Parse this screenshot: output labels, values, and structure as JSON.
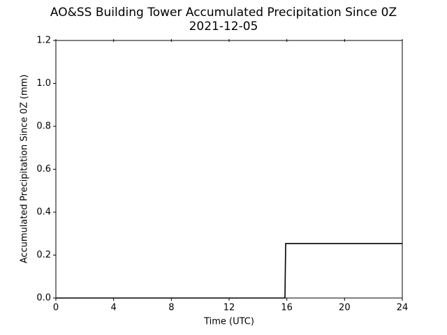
{
  "chart_data": {
    "type": "line",
    "title": "AO&SS Building Tower Accumulated Precipitation Since 0Z",
    "subtitle": "2021-12-05",
    "x_label": "Time (UTC)",
    "y_label": "Accumulated Precipitation Since 0Z (mm)",
    "x": [
      0,
      15.87,
      15.92,
      24
    ],
    "values": [
      0,
      0,
      0.254,
      0.254
    ],
    "color": "#000000",
    "xlim": [
      0,
      24
    ],
    "xticks": [
      0,
      4,
      8,
      12,
      16,
      20,
      24
    ],
    "ylim": [
      0,
      1.2
    ],
    "yticks": [
      {
        "value": 0,
        "label": "0.0"
      },
      0.2,
      0.4,
      0.6,
      0.8,
      {
        "value": 1,
        "label": "1.0"
      },
      1.2
    ],
    "grid": false
  }
}
